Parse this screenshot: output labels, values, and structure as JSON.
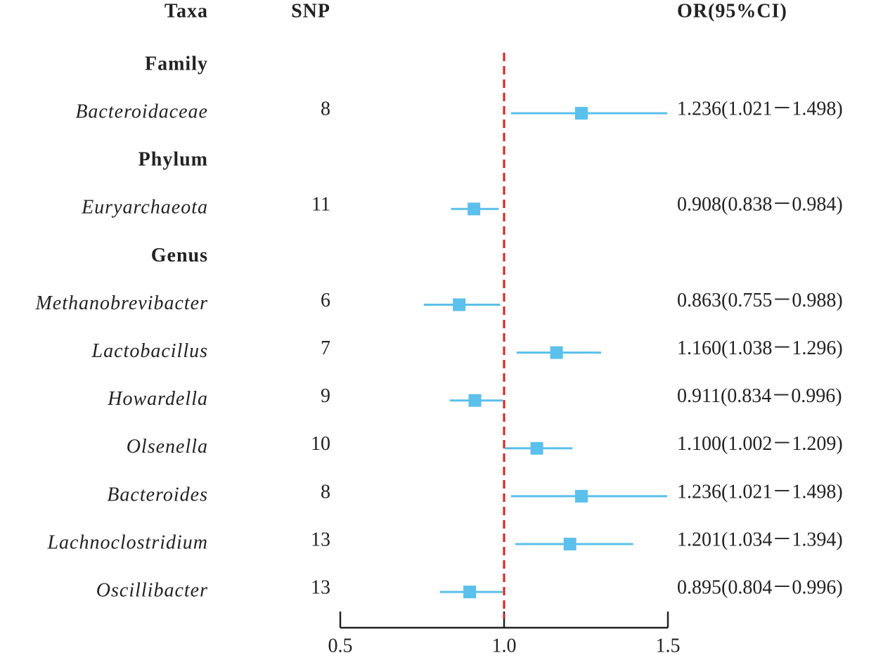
{
  "chart_data": {
    "type": "forest",
    "headers": {
      "taxa": "Taxa",
      "snp": "SNP",
      "or": "OR(95%CI)"
    },
    "rows": [
      {
        "group": "Family"
      },
      {
        "name": "Bacteroidaceae",
        "snp": 8,
        "or": 1.236,
        "lower": 1.021,
        "upper": 1.498,
        "label": "1.236(1.021－1.498)"
      },
      {
        "group": "Phylum"
      },
      {
        "name": "Euryarchaeota",
        "snp": 11,
        "or": 0.908,
        "lower": 0.838,
        "upper": 0.984,
        "label": "0.908(0.838－0.984)"
      },
      {
        "group": "Genus"
      },
      {
        "name": "Methanobrevibacter",
        "snp": 6,
        "or": 0.863,
        "lower": 0.755,
        "upper": 0.988,
        "label": "0.863(0.755－0.988)"
      },
      {
        "name": "Lactobacillus",
        "snp": 7,
        "or": 1.16,
        "lower": 1.038,
        "upper": 1.296,
        "label": "1.160(1.038－1.296)"
      },
      {
        "name": "Howardella",
        "snp": 9,
        "or": 0.911,
        "lower": 0.834,
        "upper": 0.996,
        "label": "0.911(0.834－0.996)"
      },
      {
        "name": "Olsenella",
        "snp": 10,
        "or": 1.1,
        "lower": 1.002,
        "upper": 1.209,
        "label": "1.100(1.002－1.209)"
      },
      {
        "name": "Bacteroides",
        "snp": 8,
        "or": 1.236,
        "lower": 1.021,
        "upper": 1.498,
        "label": "1.236(1.021－1.498)"
      },
      {
        "name": "Lachnoclostridium",
        "snp": 13,
        "or": 1.201,
        "lower": 1.034,
        "upper": 1.394,
        "label": "1.201(1.034－1.394)"
      },
      {
        "name": "Oscillibacter",
        "snp": 13,
        "or": 0.895,
        "lower": 0.804,
        "upper": 0.996,
        "label": "0.895(0.804－0.996)"
      }
    ],
    "xlim": [
      0.5,
      1.5
    ],
    "xticks": [
      0.5,
      {
        "value": 1,
        "label": "1.0"
      },
      1.5
    ],
    "reference": 1,
    "reference_color": "#e0201b",
    "color": "#5bc0eb"
  }
}
